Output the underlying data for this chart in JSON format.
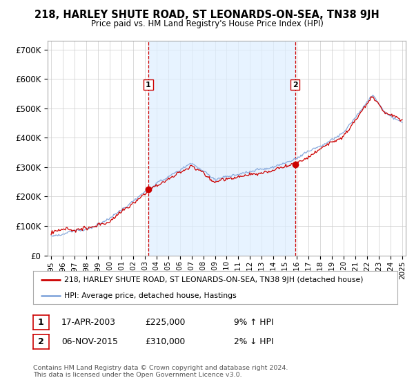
{
  "title": "218, HARLEY SHUTE ROAD, ST LEONARDS-ON-SEA, TN38 9JH",
  "subtitle": "Price paid vs. HM Land Registry's House Price Index (HPI)",
  "ylabel_ticks": [
    "£0",
    "£100K",
    "£200K",
    "£300K",
    "£400K",
    "£500K",
    "£600K",
    "£700K"
  ],
  "ytick_values": [
    0,
    100000,
    200000,
    300000,
    400000,
    500000,
    600000,
    700000
  ],
  "ylim": [
    0,
    730000
  ],
  "sale1_date": "17-APR-2003",
  "sale1_price": 225000,
  "sale1_hpi": "9% ↑ HPI",
  "sale1_year": 2003.3,
  "sale2_date": "06-NOV-2015",
  "sale2_price": 310000,
  "sale2_hpi": "2% ↓ HPI",
  "sale2_year": 2015.85,
  "legend_property": "218, HARLEY SHUTE ROAD, ST LEONARDS-ON-SEA, TN38 9JH (detached house)",
  "legend_hpi": "HPI: Average price, detached house, Hastings",
  "footer": "Contains HM Land Registry data © Crown copyright and database right 2024.\nThis data is licensed under the Open Government Licence v3.0.",
  "property_color": "#cc0000",
  "hpi_color": "#88aadd",
  "hpi_fill_color": "#ddeeff",
  "vline_color": "#cc0000",
  "background_color": "#ffffff",
  "grid_color": "#cccccc"
}
